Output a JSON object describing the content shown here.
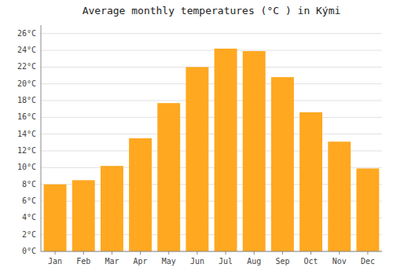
{
  "chart_data": {
    "type": "bar",
    "title": "Average monthly temperatures (°C ) in Kými",
    "categories": [
      "Jan",
      "Feb",
      "Mar",
      "Apr",
      "May",
      "Jun",
      "Jul",
      "Aug",
      "Sep",
      "Oct",
      "Nov",
      "Dec"
    ],
    "values": [
      8.0,
      8.5,
      10.2,
      13.5,
      17.7,
      22.0,
      24.2,
      23.9,
      20.8,
      16.6,
      13.1,
      9.9
    ],
    "color": "#FFA820",
    "ylim": [
      0,
      27
    ],
    "yticks": [
      {
        "value": 0,
        "label": "0°C"
      },
      {
        "value": 2,
        "label": "2°C"
      },
      {
        "value": 4,
        "label": "4°C"
      },
      {
        "value": 6,
        "label": "6°C"
      },
      {
        "value": 8,
        "label": "8°C"
      },
      {
        "value": 10,
        "label": "10°C"
      },
      {
        "value": 12,
        "label": "12°C"
      },
      {
        "value": 14,
        "label": "14°C"
      },
      {
        "value": 16,
        "label": "16°C"
      },
      {
        "value": 18,
        "label": "18°C"
      },
      {
        "value": 20,
        "label": "20°C"
      },
      {
        "value": 22,
        "label": "22°C"
      },
      {
        "value": 24,
        "label": "24°C"
      },
      {
        "value": 26,
        "label": "26°C"
      }
    ],
    "grid": true
  }
}
